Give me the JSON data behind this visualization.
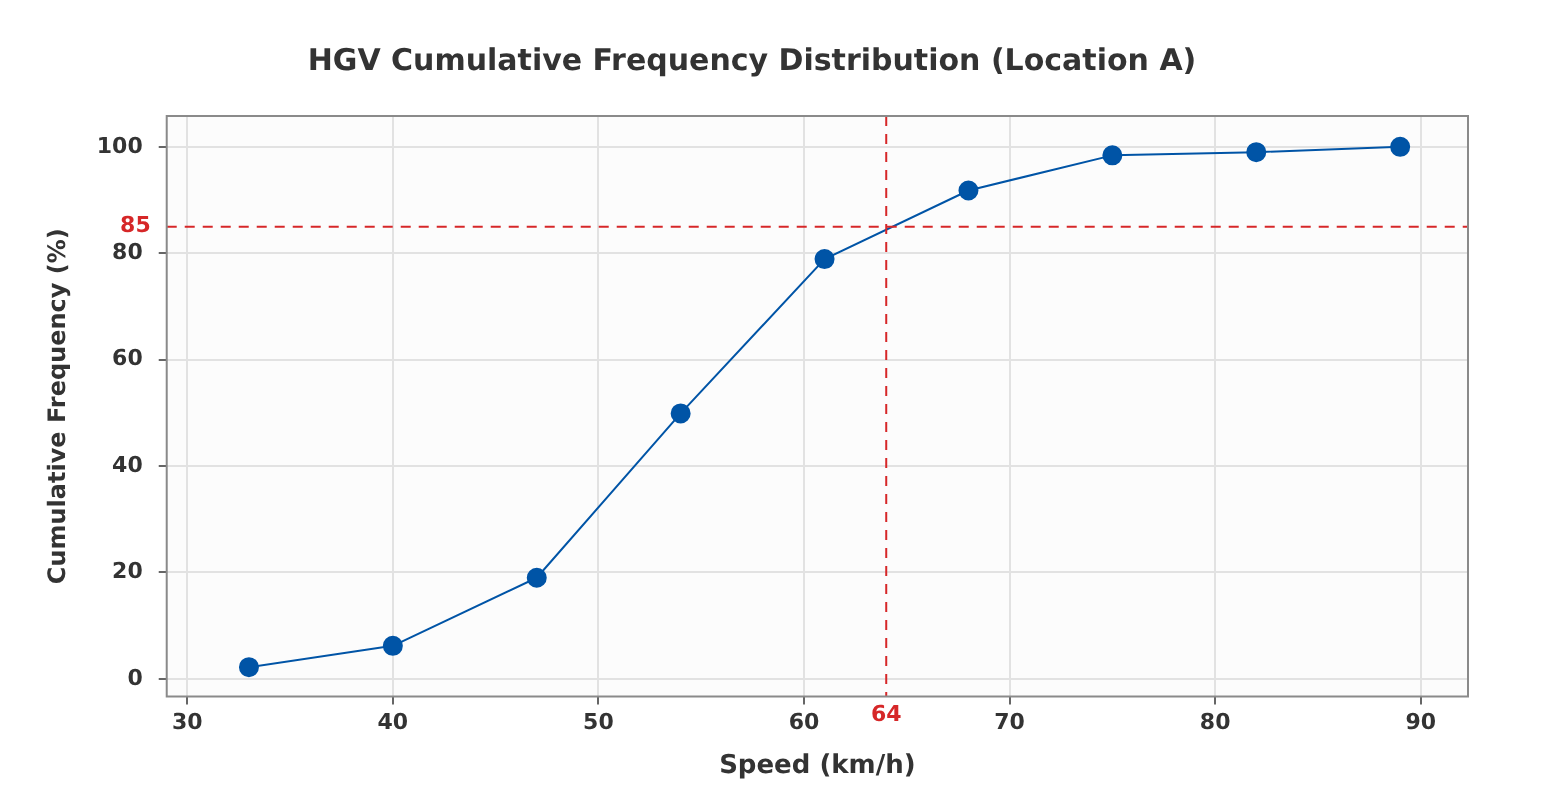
{
  "chart_data": {
    "type": "line",
    "title": "HGV Cumulative Frequency Distribution (Location A)",
    "xlabel": "Speed (km/h)",
    "ylabel": "Cumulative Frequency (%)",
    "x": [
      33,
      40,
      47,
      54,
      61,
      68,
      75,
      82,
      89
    ],
    "series": [
      {
        "color": "#0054a6",
        "values": [
          2.2,
          6.2,
          19,
          49.9,
          78.9,
          91.8,
          98.4,
          99,
          100
        ]
      }
    ],
    "xlim": [
      29,
      92.3
    ],
    "xticks": [
      30,
      40,
      50,
      60,
      70,
      80,
      90
    ],
    "ylim": [
      -3.3,
      105.8
    ],
    "yticks": [
      0,
      20,
      40,
      60,
      80,
      100
    ],
    "ref_lines": [
      {
        "axis": "y",
        "value": 85,
        "label": "85",
        "color": "#d62728",
        "line_style": "dashed"
      },
      {
        "axis": "x",
        "value": 64,
        "label": "64",
        "color": "#d62728",
        "line_style": "dashed"
      }
    ],
    "grid": true,
    "legend": false,
    "marker": "circle",
    "line_style": "solid"
  }
}
